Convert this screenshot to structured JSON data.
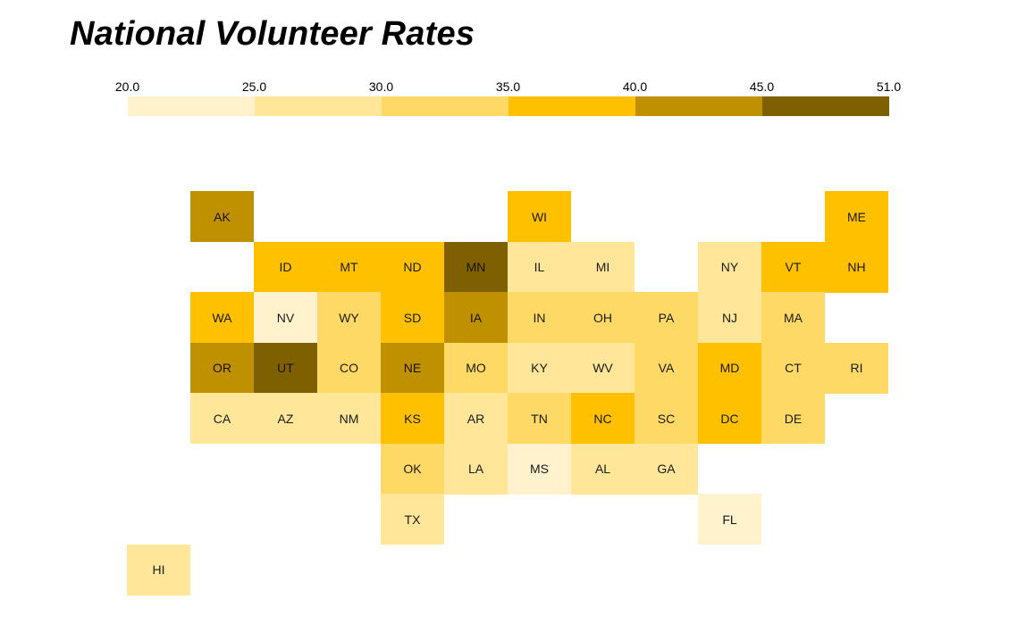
{
  "title": "National Volunteer Rates",
  "legend": {
    "ticks": [
      "20.0",
      "25.0",
      "30.0",
      "35.0",
      "40.0",
      "45.0",
      "51.0"
    ],
    "bins": [
      {
        "from": 20.0,
        "to": 25.0,
        "color": "#FFF2CC"
      },
      {
        "from": 25.0,
        "to": 30.0,
        "color": "#FFE699"
      },
      {
        "from": 30.0,
        "to": 35.0,
        "color": "#FFD966"
      },
      {
        "from": 35.0,
        "to": 40.0,
        "color": "#FFC000"
      },
      {
        "from": 40.0,
        "to": 45.0,
        "color": "#BF9000"
      },
      {
        "from": 45.0,
        "to": 51.0,
        "color": "#7F6000"
      }
    ]
  },
  "chart_data": {
    "type": "heatmap",
    "title": "National Volunteer Rates",
    "scale_breaks": [
      20.0,
      25.0,
      30.0,
      35.0,
      40.0,
      45.0,
      51.0
    ],
    "states": [
      {
        "abbr": "AK",
        "row": 0,
        "col": 1,
        "bin": 4
      },
      {
        "abbr": "WI",
        "row": 0,
        "col": 6,
        "bin": 3
      },
      {
        "abbr": "ME",
        "row": 0,
        "col": 11,
        "bin": 3
      },
      {
        "abbr": "ID",
        "row": 1,
        "col": 2,
        "bin": 3
      },
      {
        "abbr": "MT",
        "row": 1,
        "col": 3,
        "bin": 3
      },
      {
        "abbr": "ND",
        "row": 1,
        "col": 4,
        "bin": 3
      },
      {
        "abbr": "MN",
        "row": 1,
        "col": 5,
        "bin": 5
      },
      {
        "abbr": "IL",
        "row": 1,
        "col": 6,
        "bin": 1
      },
      {
        "abbr": "MI",
        "row": 1,
        "col": 7,
        "bin": 1
      },
      {
        "abbr": "NY",
        "row": 1,
        "col": 9,
        "bin": 1
      },
      {
        "abbr": "VT",
        "row": 1,
        "col": 10,
        "bin": 3
      },
      {
        "abbr": "NH",
        "row": 1,
        "col": 11,
        "bin": 3
      },
      {
        "abbr": "WA",
        "row": 2,
        "col": 1,
        "bin": 3
      },
      {
        "abbr": "NV",
        "row": 2,
        "col": 2,
        "bin": 0
      },
      {
        "abbr": "WY",
        "row": 2,
        "col": 3,
        "bin": 2
      },
      {
        "abbr": "SD",
        "row": 2,
        "col": 4,
        "bin": 3
      },
      {
        "abbr": "IA",
        "row": 2,
        "col": 5,
        "bin": 4
      },
      {
        "abbr": "IN",
        "row": 2,
        "col": 6,
        "bin": 2
      },
      {
        "abbr": "OH",
        "row": 2,
        "col": 7,
        "bin": 2
      },
      {
        "abbr": "PA",
        "row": 2,
        "col": 8,
        "bin": 2
      },
      {
        "abbr": "NJ",
        "row": 2,
        "col": 9,
        "bin": 1
      },
      {
        "abbr": "MA",
        "row": 2,
        "col": 10,
        "bin": 2
      },
      {
        "abbr": "OR",
        "row": 3,
        "col": 1,
        "bin": 4
      },
      {
        "abbr": "UT",
        "row": 3,
        "col": 2,
        "bin": 5
      },
      {
        "abbr": "CO",
        "row": 3,
        "col": 3,
        "bin": 2
      },
      {
        "abbr": "NE",
        "row": 3,
        "col": 4,
        "bin": 4
      },
      {
        "abbr": "MO",
        "row": 3,
        "col": 5,
        "bin": 2
      },
      {
        "abbr": "KY",
        "row": 3,
        "col": 6,
        "bin": 1
      },
      {
        "abbr": "WV",
        "row": 3,
        "col": 7,
        "bin": 1
      },
      {
        "abbr": "VA",
        "row": 3,
        "col": 8,
        "bin": 2
      },
      {
        "abbr": "MD",
        "row": 3,
        "col": 9,
        "bin": 3
      },
      {
        "abbr": "CT",
        "row": 3,
        "col": 10,
        "bin": 2
      },
      {
        "abbr": "RI",
        "row": 3,
        "col": 11,
        "bin": 2
      },
      {
        "abbr": "CA",
        "row": 4,
        "col": 1,
        "bin": 1
      },
      {
        "abbr": "AZ",
        "row": 4,
        "col": 2,
        "bin": 1
      },
      {
        "abbr": "NM",
        "row": 4,
        "col": 3,
        "bin": 1
      },
      {
        "abbr": "KS",
        "row": 4,
        "col": 4,
        "bin": 3
      },
      {
        "abbr": "AR",
        "row": 4,
        "col": 5,
        "bin": 1
      },
      {
        "abbr": "TN",
        "row": 4,
        "col": 6,
        "bin": 2
      },
      {
        "abbr": "NC",
        "row": 4,
        "col": 7,
        "bin": 3
      },
      {
        "abbr": "SC",
        "row": 4,
        "col": 8,
        "bin": 2
      },
      {
        "abbr": "DC",
        "row": 4,
        "col": 9,
        "bin": 3
      },
      {
        "abbr": "DE",
        "row": 4,
        "col": 10,
        "bin": 2
      },
      {
        "abbr": "OK",
        "row": 5,
        "col": 4,
        "bin": 2
      },
      {
        "abbr": "LA",
        "row": 5,
        "col": 5,
        "bin": 1
      },
      {
        "abbr": "MS",
        "row": 5,
        "col": 6,
        "bin": 0
      },
      {
        "abbr": "AL",
        "row": 5,
        "col": 7,
        "bin": 1
      },
      {
        "abbr": "GA",
        "row": 5,
        "col": 8,
        "bin": 1
      },
      {
        "abbr": "TX",
        "row": 6,
        "col": 4,
        "bin": 1
      },
      {
        "abbr": "FL",
        "row": 6,
        "col": 9,
        "bin": 0
      },
      {
        "abbr": "HI",
        "row": 7,
        "col": 0,
        "bin": 1
      }
    ]
  }
}
